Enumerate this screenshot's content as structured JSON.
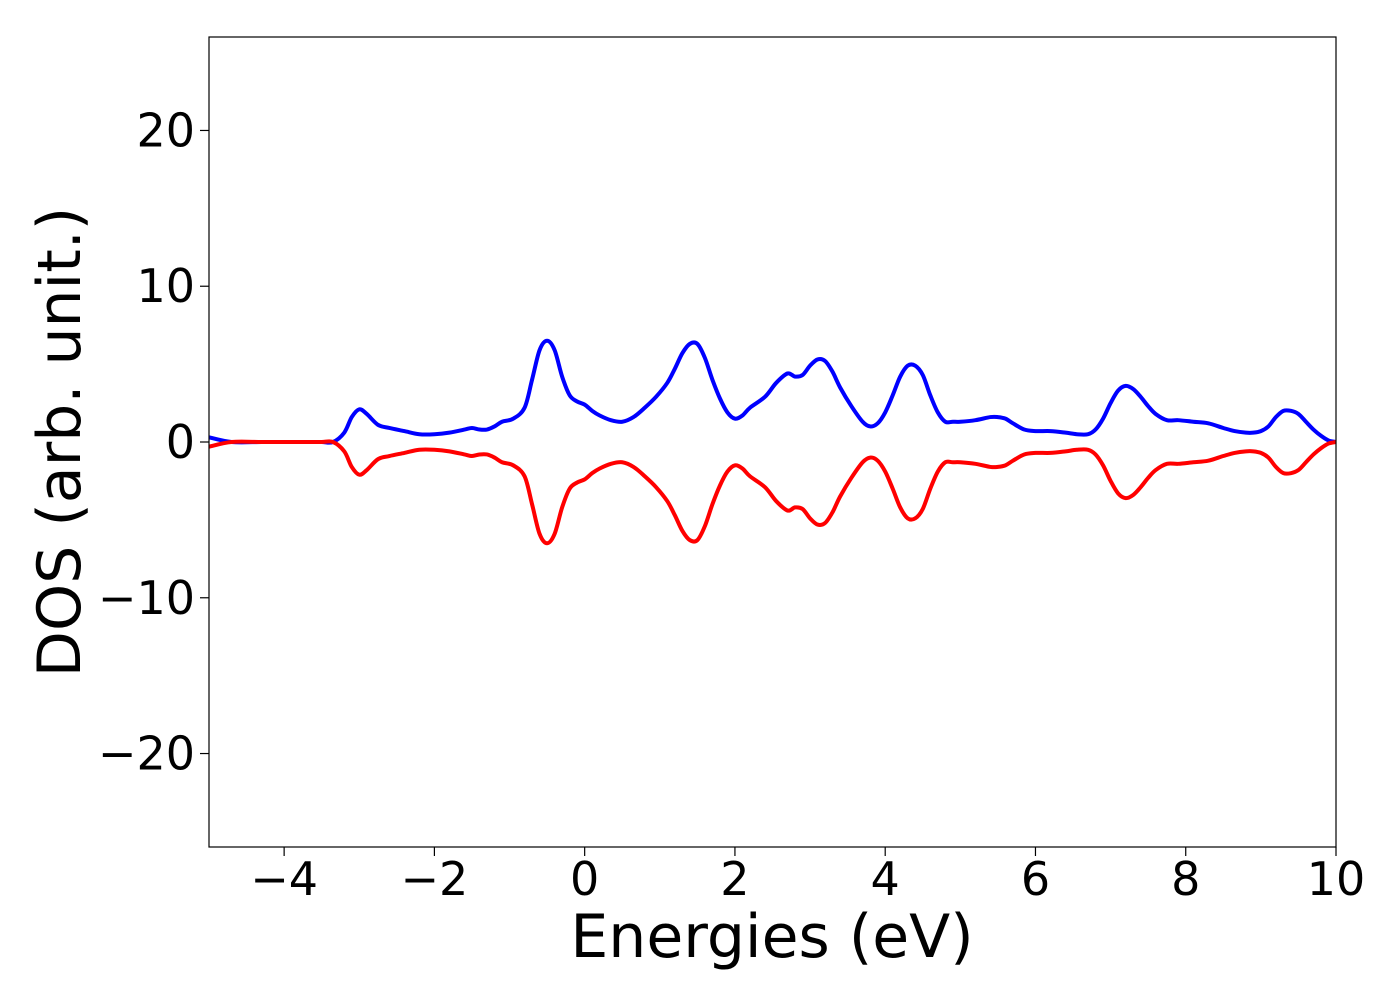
{
  "chart_data": {
    "type": "line",
    "title": "",
    "xlabel": "Energies (eV)",
    "ylabel": "DOS (arb. unit.)",
    "xlim": [
      -5,
      10
    ],
    "ylim": [
      -26,
      26
    ],
    "xticks": [
      -4,
      -2,
      0,
      2,
      4,
      6,
      8,
      10
    ],
    "xtick_labels": [
      "−4",
      "−2",
      "0",
      "2",
      "4",
      "6",
      "8",
      "10"
    ],
    "yticks": [
      -20,
      -10,
      0,
      10,
      20
    ],
    "ytick_labels": [
      "−20",
      "−10",
      "0",
      "10",
      "20"
    ],
    "grid": false,
    "legend": "none",
    "x": [
      -5.0,
      -4.7,
      -4.3,
      -4.0,
      -3.7,
      -3.5,
      -3.35,
      -3.2,
      -3.1,
      -3.0,
      -2.9,
      -2.75,
      -2.6,
      -2.4,
      -2.2,
      -2.0,
      -1.8,
      -1.6,
      -1.5,
      -1.4,
      -1.3,
      -1.2,
      -1.1,
      -0.95,
      -0.8,
      -0.7,
      -0.6,
      -0.5,
      -0.4,
      -0.3,
      -0.2,
      -0.1,
      0.0,
      0.1,
      0.2,
      0.35,
      0.5,
      0.65,
      0.8,
      0.95,
      1.1,
      1.2,
      1.3,
      1.4,
      1.5,
      1.6,
      1.7,
      1.8,
      1.9,
      2.0,
      2.1,
      2.2,
      2.4,
      2.55,
      2.7,
      2.8,
      2.9,
      3.0,
      3.1,
      3.2,
      3.3,
      3.4,
      3.55,
      3.7,
      3.8,
      3.9,
      4.0,
      4.1,
      4.2,
      4.3,
      4.4,
      4.5,
      4.6,
      4.7,
      4.8,
      4.9,
      5.0,
      5.2,
      5.4,
      5.5,
      5.6,
      5.7,
      5.85,
      6.0,
      6.2,
      6.4,
      6.55,
      6.7,
      6.8,
      6.9,
      7.0,
      7.1,
      7.2,
      7.3,
      7.4,
      7.5,
      7.6,
      7.75,
      7.9,
      8.1,
      8.3,
      8.5,
      8.65,
      8.8,
      8.9,
      9.0,
      9.1,
      9.2,
      9.3,
      9.4,
      9.5,
      9.6,
      9.7,
      9.8,
      9.9,
      10.0
    ],
    "series": [
      {
        "color": "#0000ff",
        "values": [
          0.3,
          0.0,
          0.0,
          0.0,
          0.0,
          0.0,
          0.0,
          0.6,
          1.6,
          2.1,
          1.8,
          1.1,
          0.9,
          0.7,
          0.5,
          0.5,
          0.6,
          0.8,
          0.9,
          0.8,
          0.8,
          1.0,
          1.3,
          1.5,
          2.2,
          4.0,
          5.9,
          6.5,
          5.9,
          4.2,
          3.0,
          2.6,
          2.4,
          2.0,
          1.7,
          1.4,
          1.3,
          1.6,
          2.2,
          2.9,
          3.8,
          4.7,
          5.7,
          6.3,
          6.3,
          5.4,
          4.0,
          2.8,
          1.9,
          1.5,
          1.7,
          2.2,
          2.9,
          3.8,
          4.4,
          4.2,
          4.3,
          4.9,
          5.3,
          5.2,
          4.5,
          3.5,
          2.3,
          1.3,
          1.0,
          1.2,
          1.9,
          3.0,
          4.2,
          4.9,
          4.9,
          4.3,
          3.0,
          1.9,
          1.3,
          1.3,
          1.3,
          1.4,
          1.6,
          1.6,
          1.5,
          1.2,
          0.8,
          0.7,
          0.7,
          0.6,
          0.5,
          0.5,
          0.8,
          1.5,
          2.5,
          3.3,
          3.6,
          3.4,
          2.9,
          2.3,
          1.8,
          1.4,
          1.4,
          1.3,
          1.2,
          0.9,
          0.7,
          0.6,
          0.6,
          0.7,
          1.0,
          1.6,
          2.0,
          2.0,
          1.8,
          1.3,
          0.8,
          0.4,
          0.1,
          0.0
        ]
      },
      {
        "color": "#ff0000",
        "values": [
          -0.3,
          0.0,
          0.0,
          0.0,
          0.0,
          0.0,
          0.0,
          -0.6,
          -1.6,
          -2.1,
          -1.8,
          -1.1,
          -0.9,
          -0.7,
          -0.5,
          -0.5,
          -0.6,
          -0.8,
          -0.9,
          -0.8,
          -0.8,
          -1.0,
          -1.3,
          -1.5,
          -2.2,
          -4.0,
          -5.9,
          -6.5,
          -5.9,
          -4.2,
          -3.0,
          -2.6,
          -2.4,
          -2.0,
          -1.7,
          -1.4,
          -1.3,
          -1.6,
          -2.2,
          -2.9,
          -3.8,
          -4.7,
          -5.7,
          -6.3,
          -6.3,
          -5.4,
          -4.0,
          -2.8,
          -1.9,
          -1.5,
          -1.7,
          -2.2,
          -2.9,
          -3.8,
          -4.4,
          -4.2,
          -4.3,
          -4.9,
          -5.3,
          -5.2,
          -4.5,
          -3.5,
          -2.3,
          -1.3,
          -1.0,
          -1.2,
          -1.9,
          -3.0,
          -4.2,
          -4.9,
          -4.9,
          -4.3,
          -3.0,
          -1.9,
          -1.3,
          -1.3,
          -1.3,
          -1.4,
          -1.6,
          -1.6,
          -1.5,
          -1.2,
          -0.8,
          -0.7,
          -0.7,
          -0.6,
          -0.5,
          -0.5,
          -0.8,
          -1.5,
          -2.5,
          -3.3,
          -3.6,
          -3.4,
          -2.9,
          -2.3,
          -1.8,
          -1.4,
          -1.4,
          -1.3,
          -1.2,
          -0.9,
          -0.7,
          -0.6,
          -0.6,
          -0.7,
          -1.0,
          -1.6,
          -2.0,
          -2.0,
          -1.8,
          -1.3,
          -0.8,
          -0.4,
          -0.1,
          0.0
        ]
      }
    ]
  }
}
